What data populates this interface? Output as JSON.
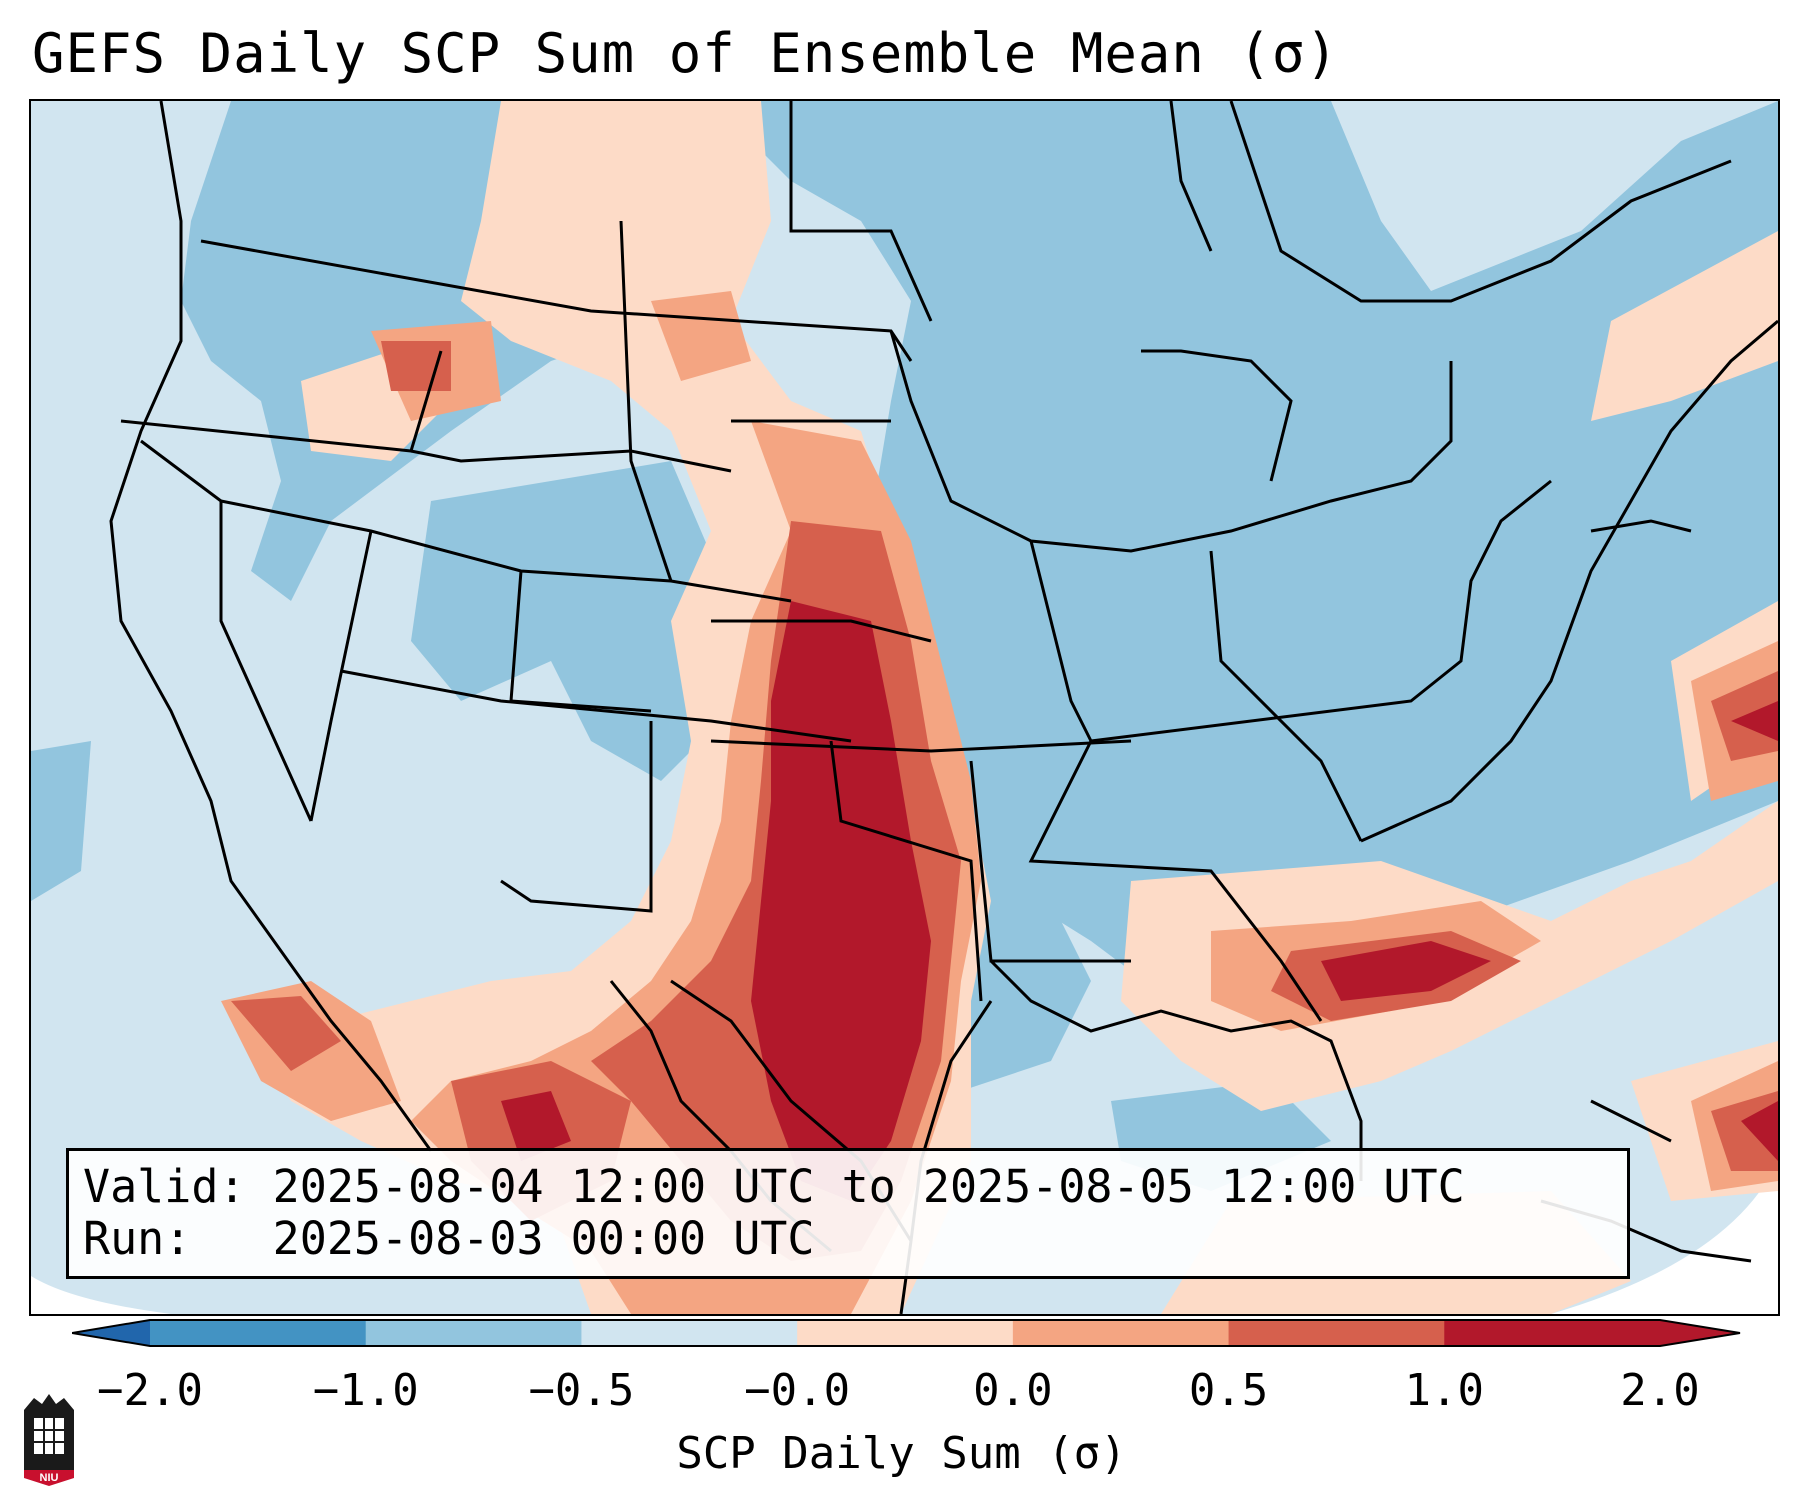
{
  "title": "GEFS Daily SCP Sum of Ensemble Mean (σ)",
  "info": {
    "valid_line": "Valid: 2025-08-04 12:00 UTC to 2025-08-05 12:00 UTC",
    "run_line": "Run:   2025-08-03 00:00 UTC"
  },
  "colorbar": {
    "label": "SCP Daily Sum (σ)",
    "ticks": [
      "−2.0",
      "−1.0",
      "−0.5",
      "−0.0",
      "0.0",
      "0.5",
      "1.0",
      "2.0"
    ],
    "colors": [
      "#4393c3",
      "#92c5de",
      "#d1e5f0",
      "#fddbc7",
      "#f4a582",
      "#d6604d",
      "#b2182b"
    ],
    "extend": "both"
  },
  "colors": {
    "outside_globe": "#ffffff",
    "background_class": "#d1e5f0",
    "border_lines": "#000000"
  },
  "logo": {
    "text": "NIU"
  }
}
